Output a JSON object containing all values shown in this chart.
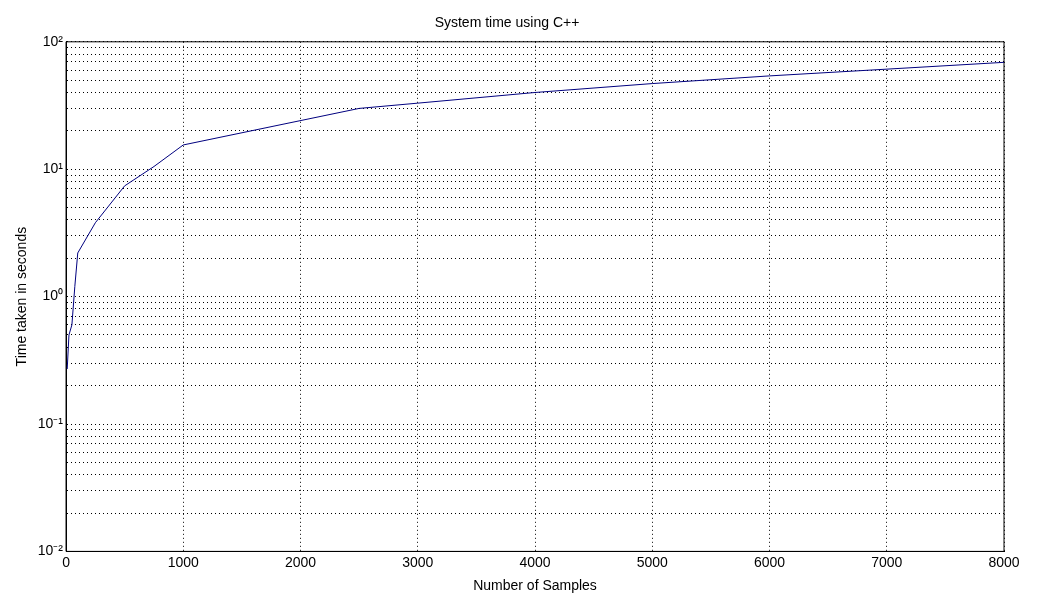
{
  "chart_data": {
    "type": "line",
    "title": "System time using C++",
    "xlabel": "Number of Samples",
    "ylabel": "Time taken in seconds",
    "x": [
      10,
      25,
      50,
      75,
      100,
      250,
      500,
      750,
      1000,
      2500,
      3000,
      4000,
      5000,
      6000,
      7000,
      8000
    ],
    "series": [
      {
        "color": "#00007f",
        "values": [
          0.27,
          0.5,
          0.6,
          1.2,
          2.2,
          3.8,
          7.4,
          10.5,
          15.5,
          30,
          33,
          40,
          47,
          54,
          61,
          69
        ]
      }
    ],
    "log": "y",
    "grid": true,
    "legend": false,
    "marker": "none",
    "line_style": "solid",
    "xlim": [
      0,
      8000
    ],
    "xticks": [
      0,
      1000,
      2000,
      3000,
      4000,
      5000,
      6000,
      7000,
      8000
    ],
    "ylim": [
      0.01,
      100
    ],
    "yticks": [
      {
        "value": 0.01,
        "label": "10⁻²"
      },
      {
        "value": 0.02,
        "label": null
      },
      {
        "value": 0.03,
        "label": null
      },
      {
        "value": 0.04,
        "label": null
      },
      {
        "value": 0.05,
        "label": null
      },
      {
        "value": 0.06,
        "label": null
      },
      {
        "value": 0.07,
        "label": null
      },
      {
        "value": 0.08,
        "label": null
      },
      {
        "value": 0.09,
        "label": null
      },
      {
        "value": 0.1,
        "label": "10⁻¹"
      },
      {
        "value": 0.2,
        "label": null
      },
      {
        "value": 0.3,
        "label": null
      },
      {
        "value": 0.4,
        "label": null
      },
      {
        "value": 0.5,
        "label": null
      },
      {
        "value": 0.6,
        "label": null
      },
      {
        "value": 0.7,
        "label": null
      },
      {
        "value": 0.8,
        "label": null
      },
      {
        "value": 0.9,
        "label": null
      },
      {
        "value": 1,
        "label": "10⁰"
      },
      {
        "value": 2,
        "label": null
      },
      {
        "value": 3,
        "label": null
      },
      {
        "value": 4,
        "label": null
      },
      {
        "value": 5,
        "label": null
      },
      {
        "value": 6,
        "label": null
      },
      {
        "value": 7,
        "label": null
      },
      {
        "value": 8,
        "label": null
      },
      {
        "value": 9,
        "label": null
      },
      {
        "value": 10,
        "label": "10¹"
      },
      {
        "value": 20,
        "label": null
      },
      {
        "value": 30,
        "label": null
      },
      {
        "value": 40,
        "label": null
      },
      {
        "value": 50,
        "label": null
      },
      {
        "value": 60,
        "label": null
      },
      {
        "value": 70,
        "label": null
      },
      {
        "value": 80,
        "label": null
      },
      {
        "value": 90,
        "label": null
      },
      {
        "value": 100,
        "label": "10²"
      }
    ]
  }
}
